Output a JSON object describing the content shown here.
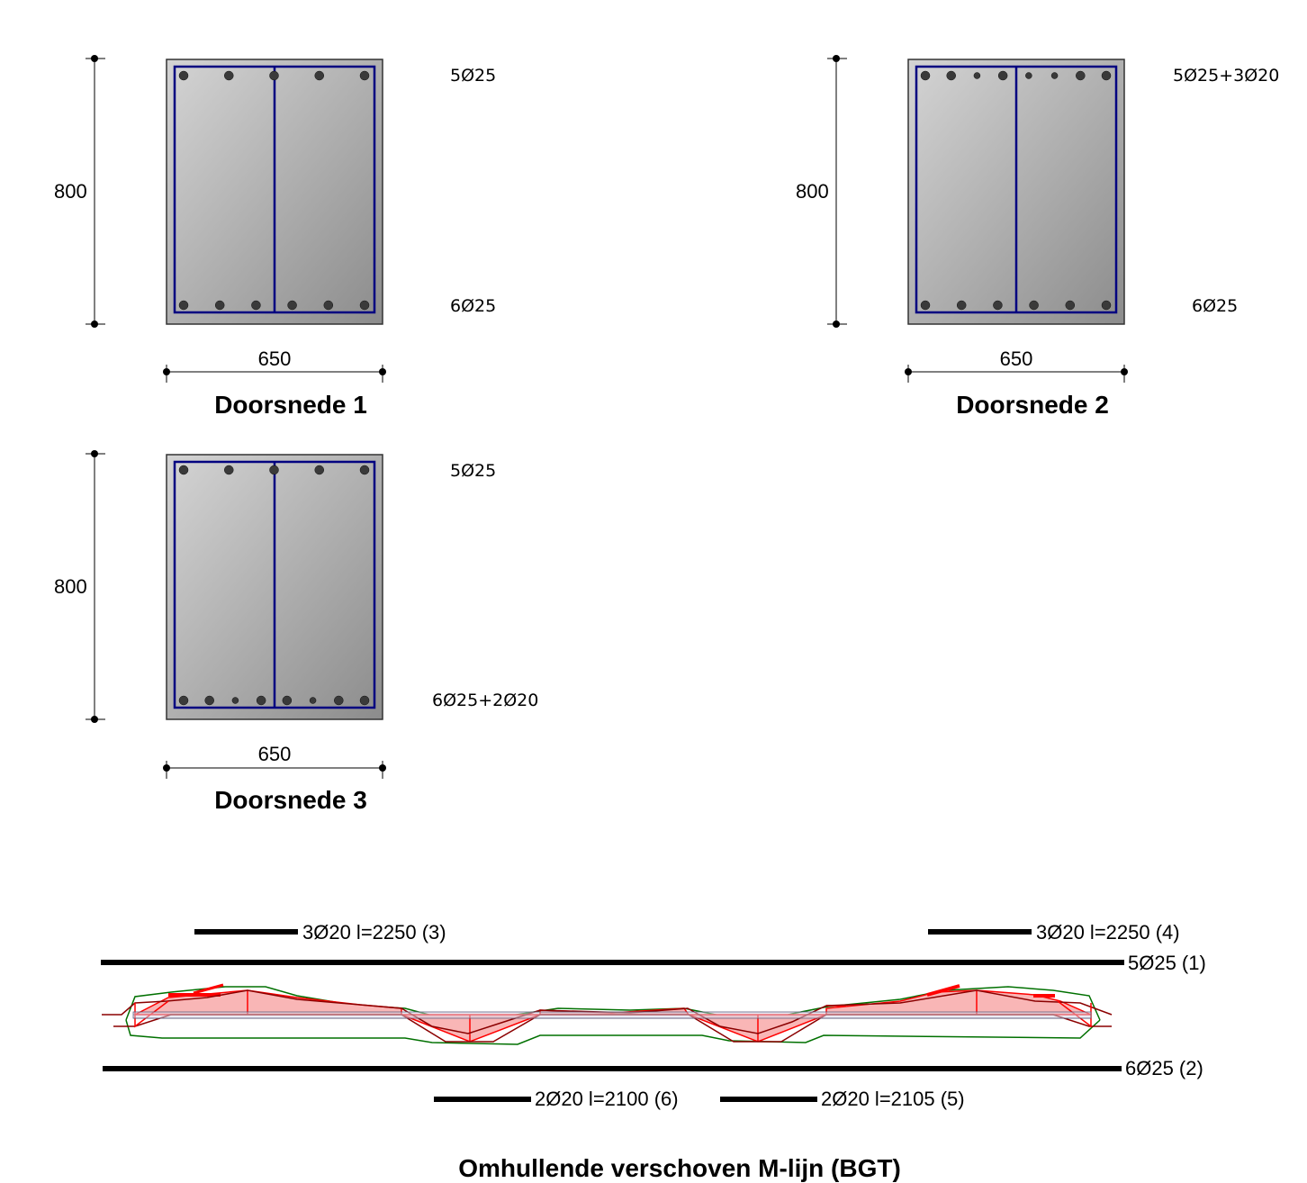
{
  "sections": [
    {
      "title": "Doorsnede 1",
      "height_label": "800",
      "width_label": "650",
      "top_bars": "5Ø25",
      "bottom_bars": "6Ø25",
      "top_bar_count": 5,
      "top_small_count": 0,
      "bottom_bar_count": 6,
      "bottom_small_count": 0
    },
    {
      "title": "Doorsnede 2",
      "height_label": "800",
      "width_label": "650",
      "top_bars": "5Ø25+3Ø20",
      "bottom_bars": "6Ø25",
      "top_bar_count": 5,
      "top_small_count": 3,
      "bottom_bar_count": 6,
      "bottom_small_count": 0
    },
    {
      "title": "Doorsnede 3",
      "height_label": "800",
      "width_label": "650",
      "top_bars": "5Ø25",
      "bottom_bars": "6Ø25+2Ø20",
      "top_bar_count": 5,
      "top_small_count": 0,
      "bottom_bar_count": 6,
      "bottom_small_count": 2
    }
  ],
  "rebar_lines": {
    "top_left_extra": "3Ø20 l=2250 (3)",
    "top_right_extra": "3Ø20 l=2250 (4)",
    "top_main": "5Ø25 (1)",
    "bottom_main": "6Ø25 (2)",
    "bottom_left_extra": "2Ø20 l=2100 (6)",
    "bottom_right_extra": "2Ø20 l=2105 (5)"
  },
  "diagram_title": "Omhullende verschoven M-lijn (BGT)",
  "colors": {
    "concrete_light": "#d2d2d2",
    "concrete_dark": "#8a8a8a",
    "stirrup": "#000080",
    "moment_fill": "#f9b6b6",
    "moment_line": "#ff0000",
    "moment_dark": "#8b0000",
    "envelope": "#007000"
  }
}
